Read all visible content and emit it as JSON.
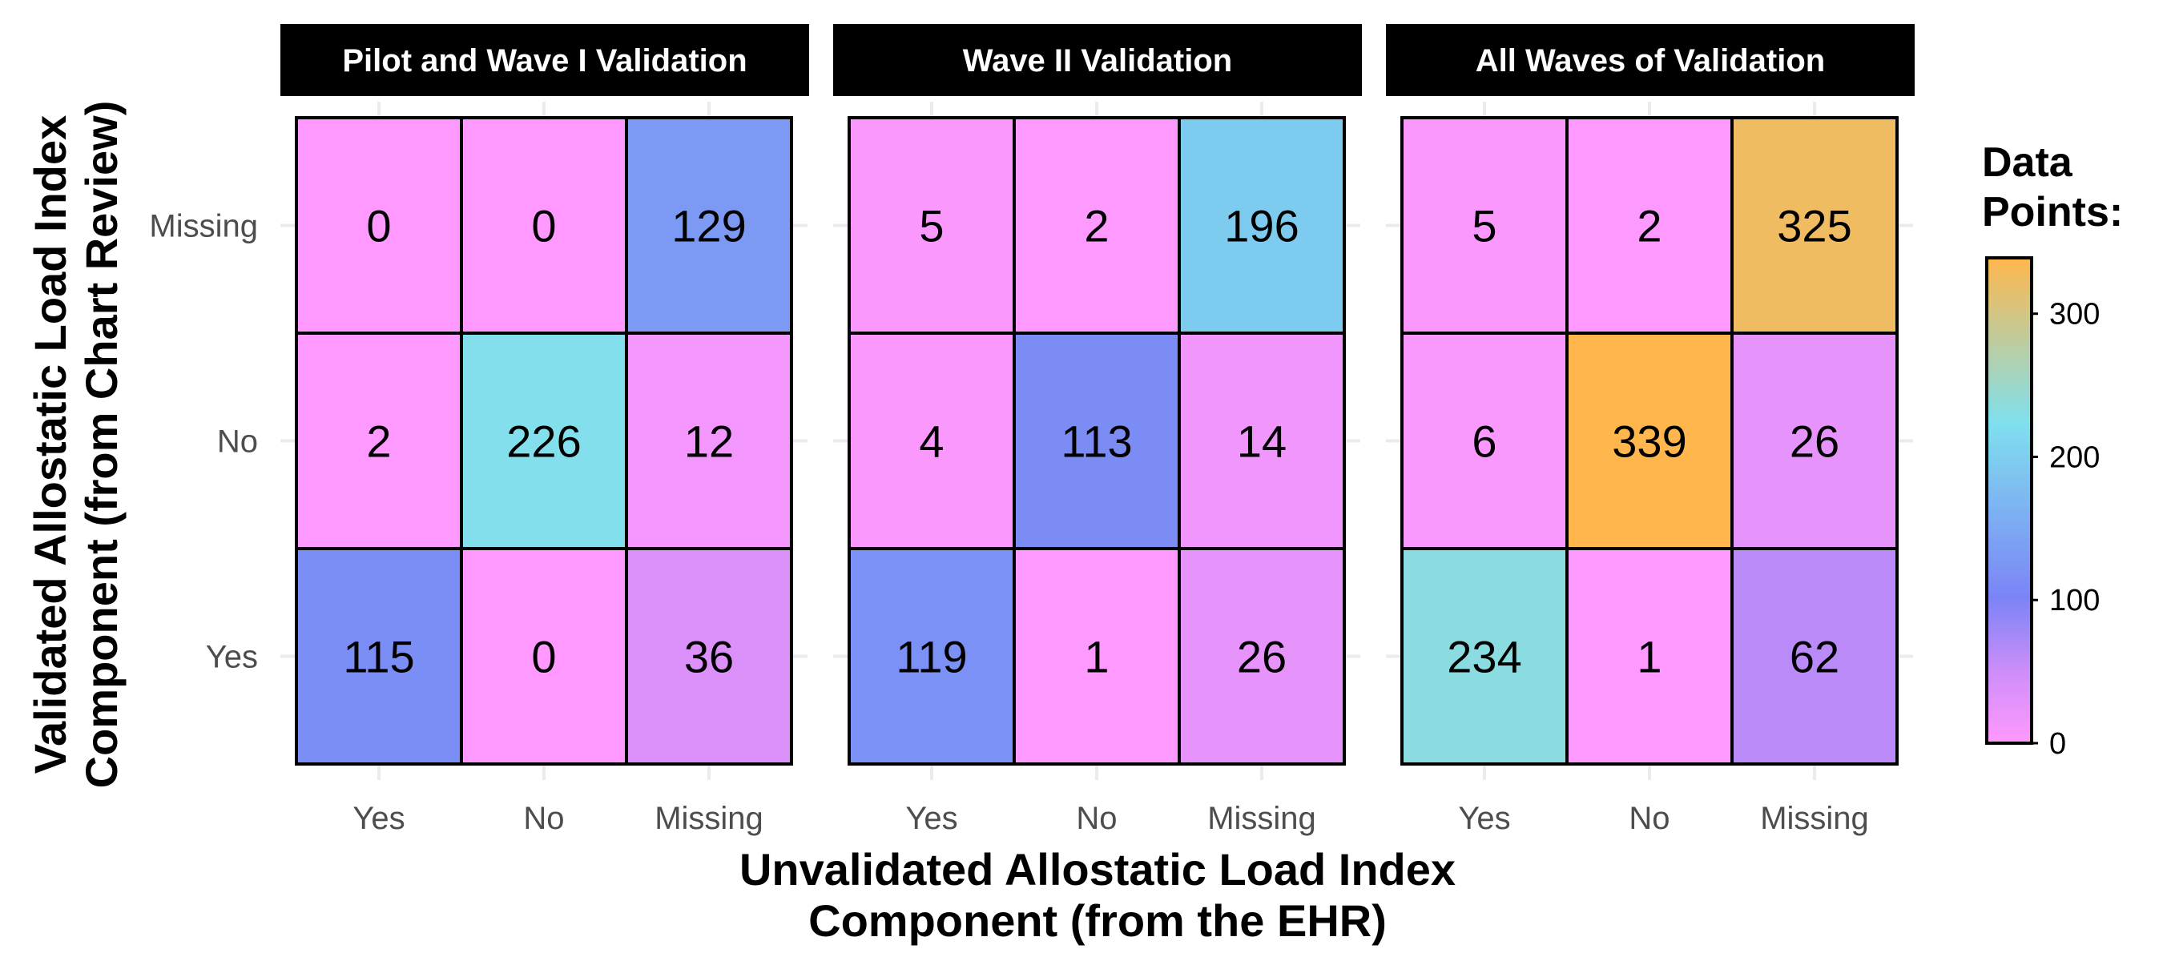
{
  "chart_data": {
    "type": "heatmap",
    "x_categories": [
      "Yes",
      "No",
      "Missing"
    ],
    "y_categories": [
      "Yes",
      "No",
      "Missing"
    ],
    "xlabel": [
      "Unvalidated Allostatic Load Index",
      "Component (from the EHR)"
    ],
    "ylabel": [
      "Validated Allostatic Load Index",
      "Component (from Chart Review)"
    ],
    "legend": {
      "title": [
        "Data",
        "Points:"
      ],
      "ticks": [
        0,
        100,
        200,
        300
      ],
      "range": [
        0,
        339
      ],
      "colors": [
        "#ff99ff",
        "#d18ef9",
        "#7b84f6",
        "#7fe0ee",
        "#ffb74d"
      ],
      "stops": [
        0,
        0.14,
        0.3,
        0.66,
        1
      ],
      "placement": "right"
    },
    "grid": true,
    "panels": [
      {
        "title": "Pilot and Wave I Validation",
        "values": {
          "Missing": {
            "Yes": 0,
            "No": 0,
            "Missing": 129
          },
          "No": {
            "Yes": 2,
            "No": 226,
            "Missing": 12
          },
          "Yes": {
            "Yes": 115,
            "No": 0,
            "Missing": 36
          }
        }
      },
      {
        "title": "Wave II Validation",
        "values": {
          "Missing": {
            "Yes": 5,
            "No": 2,
            "Missing": 196
          },
          "No": {
            "Yes": 4,
            "No": 113,
            "Missing": 14
          },
          "Yes": {
            "Yes": 119,
            "No": 1,
            "Missing": 26
          }
        }
      },
      {
        "title": "All Waves of Validation",
        "values": {
          "Missing": {
            "Yes": 5,
            "No": 2,
            "Missing": 325
          },
          "No": {
            "Yes": 6,
            "No": 339,
            "Missing": 26
          },
          "Yes": {
            "Yes": 234,
            "No": 1,
            "Missing": 62
          }
        }
      }
    ]
  }
}
